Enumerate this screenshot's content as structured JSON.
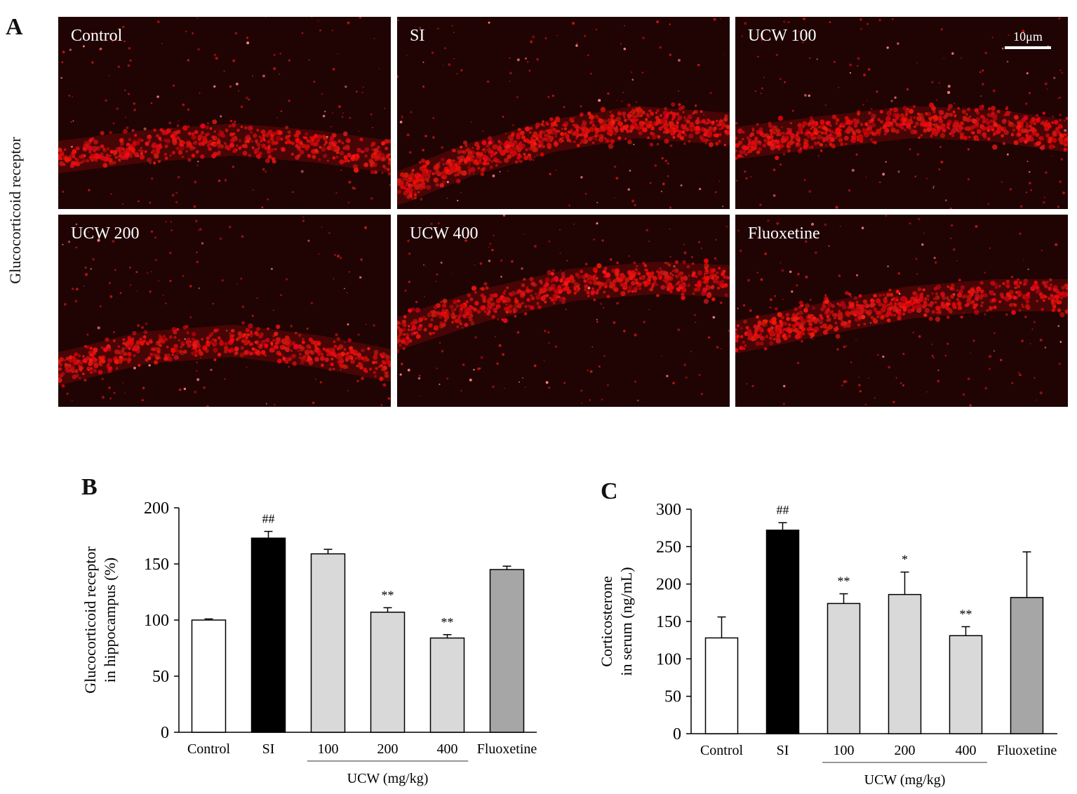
{
  "panel_a": {
    "letter": "A",
    "side_label": "Glucocorticoid receptor",
    "scale_label": "10μm",
    "images": [
      {
        "label": "Control",
        "band": [
          [
            0,
            200
          ],
          [
            120,
            185
          ],
          [
            250,
            175
          ],
          [
            370,
            185
          ],
          [
            474,
            200
          ]
        ],
        "density": 1.0
      },
      {
        "label": "SI",
        "band": [
          [
            0,
            245
          ],
          [
            100,
            205
          ],
          [
            220,
            170
          ],
          [
            340,
            150
          ],
          [
            474,
            160
          ]
        ],
        "density": 1.5
      },
      {
        "label": "UCW 100",
        "band": [
          [
            0,
            180
          ],
          [
            120,
            165
          ],
          [
            250,
            150
          ],
          [
            370,
            155
          ],
          [
            474,
            170
          ]
        ],
        "density": 1.3
      },
      {
        "label": "UCW 200",
        "band": [
          [
            0,
            220
          ],
          [
            120,
            190
          ],
          [
            250,
            180
          ],
          [
            370,
            195
          ],
          [
            474,
            215
          ]
        ],
        "density": 1.0
      },
      {
        "label": "UCW 400",
        "band": [
          [
            0,
            170
          ],
          [
            120,
            130
          ],
          [
            250,
            100
          ],
          [
            370,
            90
          ],
          [
            474,
            95
          ]
        ],
        "density": 1.1
      },
      {
        "label": "Fluoxetine",
        "band": [
          [
            0,
            175
          ],
          [
            120,
            150
          ],
          [
            250,
            125
          ],
          [
            370,
            115
          ],
          [
            474,
            115
          ]
        ],
        "density": 1.2
      }
    ]
  },
  "chart_data": [
    {
      "type": "bar",
      "panel": "B",
      "ylabel": [
        "Glucocorticoid receptor",
        "in hippocampus (%)"
      ],
      "ylim": [
        0,
        200
      ],
      "yticks": [
        0,
        50,
        100,
        150,
        200
      ],
      "categories": [
        "Control",
        "SI",
        "100",
        "200",
        "400",
        "Fluoxetine"
      ],
      "values": [
        100,
        173,
        159,
        107,
        84,
        145
      ],
      "errors": [
        1,
        6,
        4,
        4,
        3,
        3
      ],
      "annotations": [
        "",
        "##",
        "",
        "**",
        "**",
        ""
      ],
      "colors": [
        "#ffffff",
        "#000000",
        "#d9d9d9",
        "#d9d9d9",
        "#d9d9d9",
        "#a6a6a6"
      ],
      "group_label": "UCW (mg/kg)",
      "group_span": [
        2,
        4
      ]
    },
    {
      "type": "bar",
      "panel": "C",
      "ylabel": [
        "Corticosterone",
        "in serum (ng/mL)"
      ],
      "ylim": [
        0,
        300
      ],
      "yticks": [
        0,
        50,
        100,
        150,
        200,
        250,
        300
      ],
      "categories": [
        "Control",
        "SI",
        "100",
        "200",
        "400",
        "Fluoxetine"
      ],
      "values": [
        128,
        272,
        174,
        186,
        131,
        182
      ],
      "errors": [
        28,
        10,
        13,
        30,
        12,
        61
      ],
      "annotations": [
        "",
        "##",
        "**",
        "*",
        "**",
        ""
      ],
      "colors": [
        "#ffffff",
        "#000000",
        "#d9d9d9",
        "#d9d9d9",
        "#d9d9d9",
        "#a6a6a6"
      ],
      "group_label": "UCW (mg/kg)",
      "group_span": [
        2,
        4
      ]
    }
  ]
}
